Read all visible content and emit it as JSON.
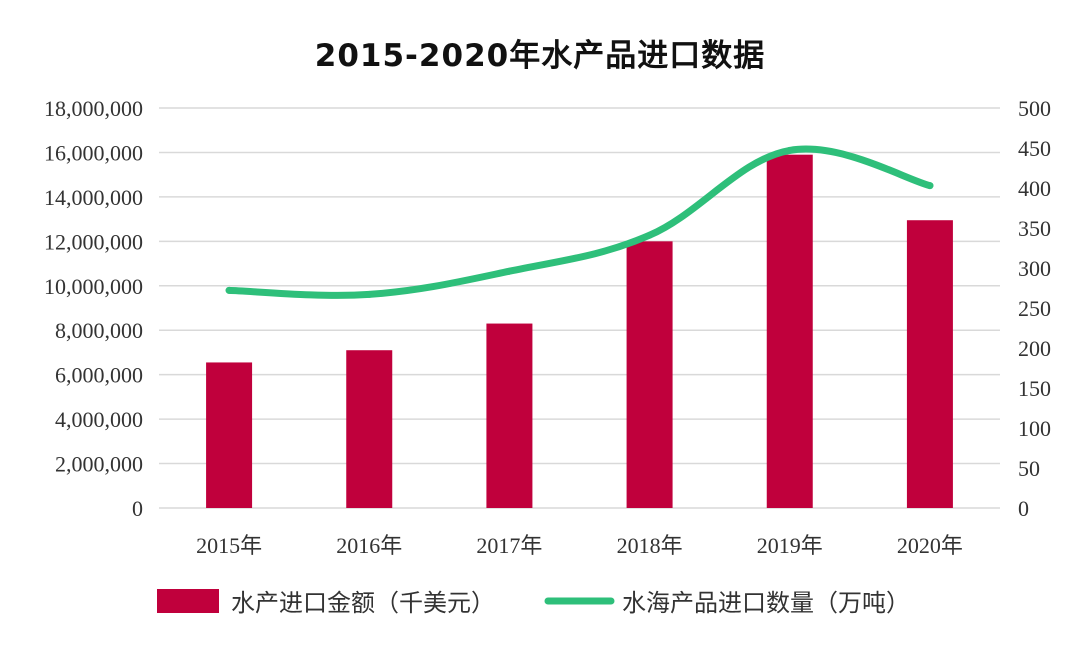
{
  "chart_data": {
    "type": "bar",
    "title": "2015-2020年水产品进口数据",
    "categories": [
      "2015年",
      "2016年",
      "2017年",
      "2018年",
      "2019年",
      "2020年"
    ],
    "series": [
      {
        "name": "水产进口金额（千美元）",
        "type": "bar",
        "axis": "left",
        "color": "#C0003C",
        "values": [
          6550000,
          7100000,
          8300000,
          12000000,
          15900000,
          12950000
        ]
      },
      {
        "name": "水海产品进口数量（万吨）",
        "type": "line",
        "axis": "right",
        "color": "#2EBF7A",
        "values": [
          272,
          267,
          296,
          341,
          447,
          403
        ]
      }
    ],
    "y_left": {
      "min": 0,
      "max": 18000000,
      "ticks": [
        0,
        2000000,
        4000000,
        6000000,
        8000000,
        10000000,
        12000000,
        14000000,
        16000000,
        18000000
      ],
      "tick_labels": [
        "0",
        "2,000,000",
        "4,000,000",
        "6,000,000",
        "8,000,000",
        "10,000,000",
        "12,000,000",
        "14,000,000",
        "16,000,000",
        "18,000,000"
      ]
    },
    "y_right": {
      "min": 0,
      "max": 500,
      "ticks": [
        0,
        50,
        100,
        150,
        200,
        250,
        300,
        350,
        400,
        450,
        500
      ],
      "tick_labels": [
        "0",
        "50",
        "100",
        "150",
        "200",
        "250",
        "300",
        "350",
        "400",
        "450",
        "500"
      ]
    },
    "grid": true,
    "legend": {
      "position": "bottom",
      "items": [
        {
          "label": "水产进口金额（千美元）",
          "kind": "bar",
          "color": "#C0003C"
        },
        {
          "label": "水海产品进口数量（万吨）",
          "kind": "line",
          "color": "#2EBF7A"
        }
      ]
    }
  }
}
